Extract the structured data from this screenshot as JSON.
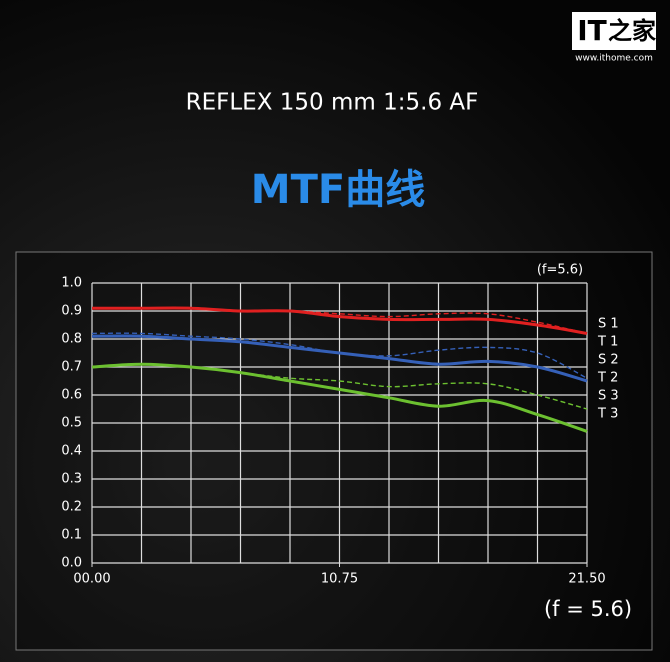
{
  "header": {
    "logo": "IT",
    "logo_cn": "之家",
    "url": "www.ithome.com"
  },
  "chart_data": {
    "type": "line",
    "title": "REFLEX 150 mm 1:5.6 AF",
    "subtitle": "MTF曲线",
    "annotations": [
      "(f=5.6)",
      "(f = 5.6)"
    ],
    "x": [
      0,
      2.15,
      4.3,
      6.45,
      8.6,
      10.75,
      12.9,
      15.05,
      17.2,
      19.35,
      21.5
    ],
    "xlim": [
      0,
      21.5
    ],
    "xticks": [
      {
        "value": 0,
        "label": "00.00"
      },
      {
        "value": 10.75,
        "label": "10.75"
      },
      {
        "value": 21.5,
        "label": "21.50"
      }
    ],
    "ylim": [
      0,
      1
    ],
    "yticks": [
      {
        "value": 0,
        "label": "0.0"
      },
      0.1,
      0.2,
      0.3,
      0.4,
      0.5,
      0.6,
      0.7,
      0.8,
      0.9,
      {
        "value": 1,
        "label": "1.0"
      }
    ],
    "grid": true,
    "series": [
      {
        "name": "S 1",
        "color": "#e02020",
        "dashed": false,
        "values": [
          0.91,
          0.91,
          0.91,
          0.9,
          0.9,
          0.88,
          0.87,
          0.87,
          0.87,
          0.85,
          0.82
        ]
      },
      {
        "name": "T 1",
        "color": "#e02020",
        "dashed": true,
        "values": [
          0.91,
          0.91,
          0.91,
          0.9,
          0.9,
          0.89,
          0.88,
          0.89,
          0.89,
          0.86,
          0.82
        ]
      },
      {
        "name": "S 2",
        "color": "#3560b8",
        "dashed": false,
        "values": [
          0.81,
          0.81,
          0.8,
          0.79,
          0.77,
          0.75,
          0.73,
          0.71,
          0.72,
          0.7,
          0.65
        ]
      },
      {
        "name": "T 2",
        "color": "#3560b8",
        "dashed": true,
        "values": [
          0.82,
          0.82,
          0.81,
          0.8,
          0.78,
          0.75,
          0.74,
          0.76,
          0.77,
          0.75,
          0.66
        ]
      },
      {
        "name": "S 3",
        "color": "#6cc030",
        "dashed": false,
        "values": [
          0.7,
          0.71,
          0.7,
          0.68,
          0.65,
          0.62,
          0.59,
          0.56,
          0.58,
          0.53,
          0.47
        ]
      },
      {
        "name": "T 3",
        "color": "#6cc030",
        "dashed": true,
        "values": [
          0.7,
          0.71,
          0.7,
          0.68,
          0.66,
          0.65,
          0.63,
          0.64,
          0.64,
          0.6,
          0.55
        ]
      }
    ]
  }
}
